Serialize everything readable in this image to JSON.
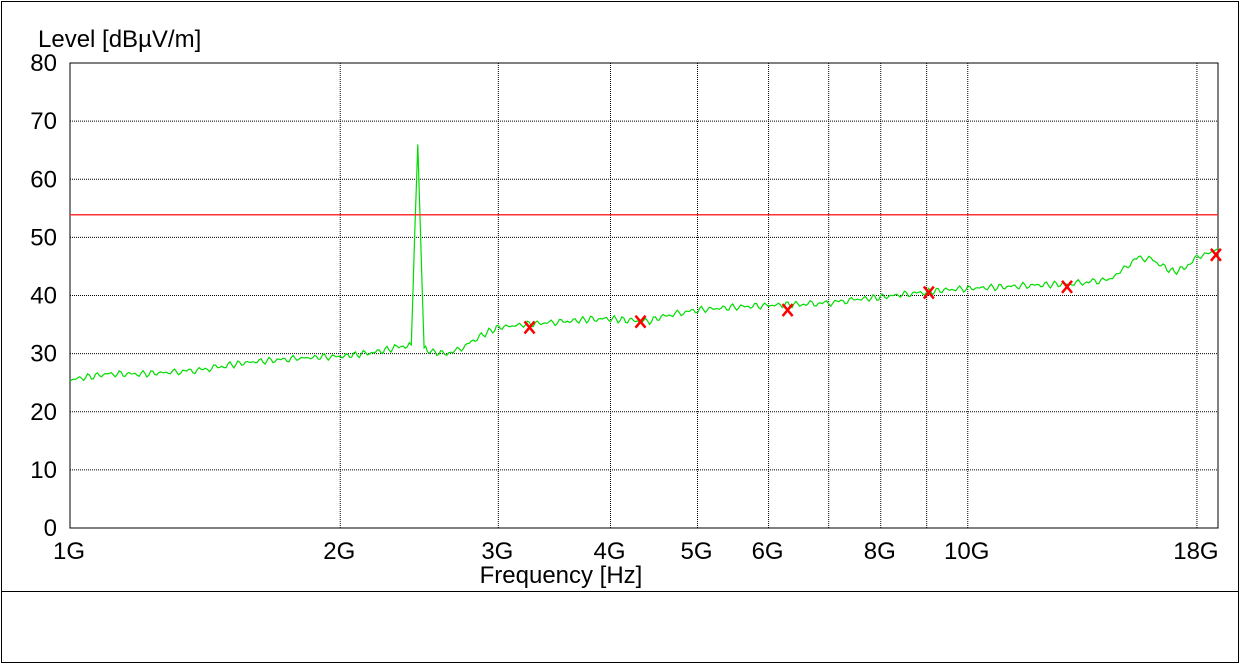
{
  "chart_data": {
    "type": "line",
    "title": "",
    "ylabel": "Level [dBµV/m]",
    "xlabel": "Frequency [Hz]",
    "x_scale": "log",
    "xlim": [
      1000000000,
      19000000000
    ],
    "ylim": [
      0,
      80
    ],
    "grid": true,
    "x_ticks": [
      {
        "label": "1G",
        "value": 1000000000
      },
      {
        "label": "2G",
        "value": 2000000000
      },
      {
        "label": "3G",
        "value": 3000000000
      },
      {
        "label": "4G",
        "value": 4000000000
      },
      {
        "label": "5G",
        "value": 5000000000
      },
      {
        "label": "6G",
        "value": 6000000000
      },
      {
        "label": "8G",
        "value": 8000000000
      },
      {
        "label": "10G",
        "value": 10000000000
      },
      {
        "label": "18G",
        "value": 18000000000
      }
    ],
    "x_gridlines": [
      2000000000,
      3000000000,
      4000000000,
      5000000000,
      6000000000,
      7000000000,
      8000000000,
      9000000000,
      10000000000,
      18000000000
    ],
    "y_ticks": [
      0,
      10,
      20,
      30,
      40,
      50,
      60,
      70,
      80
    ],
    "series": [
      {
        "color": "#00dd00",
        "x": [
          1000000000,
          1100000000,
          1200000000,
          1300000000,
          1400000000,
          1500000000,
          1600000000,
          1700000000,
          1800000000,
          1900000000,
          2000000000,
          2100000000,
          2200000000,
          2300000000,
          2350000000,
          2400000000,
          2420000000,
          2440000000,
          2460000000,
          2480000000,
          2500000000,
          2600000000,
          2700000000,
          2800000000,
          2900000000,
          3000000000,
          3200000000,
          3400000000,
          3600000000,
          3800000000,
          4000000000,
          4200000000,
          4400000000,
          4600000000,
          5000000000,
          5500000000,
          6000000000,
          6500000000,
          7000000000,
          7500000000,
          8000000000,
          8500000000,
          9000000000,
          9500000000,
          10000000000,
          11000000000,
          12000000000,
          13000000000,
          14000000000,
          14500000000,
          15000000000,
          15500000000,
          16000000000,
          16500000000,
          17000000000,
          17500000000,
          18000000000,
          19000000000
        ],
        "y": [
          25.5,
          26.5,
          26.5,
          26.8,
          27.2,
          28,
          28.6,
          28.9,
          29.2,
          29.4,
          29.5,
          29.9,
          30.3,
          31,
          31.3,
          31.5,
          50,
          66,
          48,
          31,
          30.5,
          30,
          30.5,
          32,
          33.5,
          34.5,
          35,
          35.3,
          35.6,
          35.9,
          36,
          35.7,
          35.5,
          36.5,
          37.5,
          38,
          38.3,
          38.5,
          38.7,
          39.3,
          39.7,
          40.2,
          40.6,
          41,
          41.2,
          41.5,
          41.8,
          42,
          42.5,
          43,
          45,
          46.5,
          46.3,
          45,
          44,
          45,
          46.5,
          48
        ]
      },
      {
        "color": "#ff3333",
        "x": [
          1000000000,
          19000000000
        ],
        "y": [
          53.9,
          53.9
        ]
      }
    ],
    "markers": [
      {
        "x": 3250000000,
        "y": 34.5
      },
      {
        "x": 4320000000,
        "y": 35.5
      },
      {
        "x": 6300000000,
        "y": 37.5
      },
      {
        "x": 9050000000,
        "y": 40.5
      },
      {
        "x": 12900000000,
        "y": 41.5
      },
      {
        "x": 18900000000,
        "y": 47
      }
    ],
    "colors": {
      "line": "#00dd00",
      "limit": "#ff3333",
      "marker": "#ff0000",
      "grid": "#000000"
    }
  }
}
